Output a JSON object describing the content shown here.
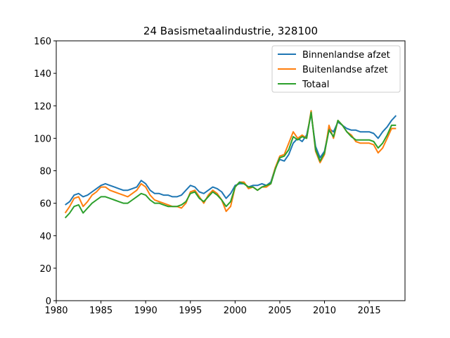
{
  "chart_data": {
    "type": "line",
    "title": "24 Basismetaalindustrie, 328100",
    "xlabel": "",
    "ylabel": "",
    "xlim": [
      1980,
      2019
    ],
    "ylim": [
      0,
      160
    ],
    "xticks": [
      1980,
      1985,
      1990,
      1995,
      2000,
      2005,
      2010,
      2015
    ],
    "yticks": [
      0,
      20,
      40,
      60,
      80,
      100,
      120,
      140,
      160
    ],
    "grid": false,
    "legend_position": "top-right",
    "series": [
      {
        "name": "Binnenlandse afzet",
        "color": "#1f77b4",
        "x": [
          1981.0,
          1981.5,
          1982.0,
          1982.5,
          1983.0,
          1983.5,
          1984.0,
          1984.5,
          1985.0,
          1985.5,
          1986.0,
          1986.5,
          1987.0,
          1987.5,
          1988.0,
          1988.5,
          1989.0,
          1989.5,
          1990.0,
          1990.5,
          1991.0,
          1991.5,
          1992.0,
          1992.5,
          1993.0,
          1993.5,
          1994.0,
          1994.5,
          1995.0,
          1995.5,
          1996.0,
          1996.5,
          1997.0,
          1997.5,
          1998.0,
          1998.5,
          1999.0,
          1999.5,
          2000.0,
          2000.5,
          2001.0,
          2001.5,
          2002.0,
          2002.5,
          2003.0,
          2003.5,
          2004.0,
          2004.5,
          2005.0,
          2005.5,
          2006.0,
          2006.5,
          2007.0,
          2007.5,
          2008.0,
          2008.5,
          2009.0,
          2009.5,
          2010.0,
          2010.5,
          2011.0,
          2011.5,
          2012.0,
          2012.5,
          2013.0,
          2013.5,
          2014.0,
          2014.5,
          2015.0,
          2015.5,
          2016.0,
          2016.5,
          2017.0,
          2017.5,
          2018.0
        ],
        "values": [
          59,
          61,
          65,
          66,
          64,
          65,
          67,
          69,
          71,
          72,
          71,
          70,
          69,
          68,
          68,
          69,
          70,
          74,
          72,
          68,
          66,
          66,
          65,
          65,
          64,
          64,
          65,
          68,
          71,
          70,
          67,
          66,
          68,
          70,
          69,
          67,
          63,
          66,
          71,
          72,
          72,
          70,
          71,
          71,
          72,
          71,
          73,
          82,
          87,
          86,
          90,
          97,
          100,
          98,
          102,
          115,
          95,
          88,
          92,
          106,
          104,
          110,
          108,
          106,
          105,
          105,
          104,
          104,
          104,
          103,
          100,
          104,
          107,
          111,
          114
        ]
      },
      {
        "name": "Buitenlandse afzet",
        "color": "#ff7f0e",
        "x": [
          1981.0,
          1981.5,
          1982.0,
          1982.5,
          1983.0,
          1983.5,
          1984.0,
          1984.5,
          1985.0,
          1985.5,
          1986.0,
          1986.5,
          1987.0,
          1987.5,
          1988.0,
          1988.5,
          1989.0,
          1989.5,
          1990.0,
          1990.5,
          1991.0,
          1991.5,
          1992.0,
          1992.5,
          1993.0,
          1993.5,
          1994.0,
          1994.5,
          1995.0,
          1995.5,
          1996.0,
          1996.5,
          1997.0,
          1997.5,
          1998.0,
          1998.5,
          1999.0,
          1999.5,
          2000.0,
          2000.5,
          2001.0,
          2001.5,
          2002.0,
          2002.5,
          2003.0,
          2003.5,
          2004.0,
          2004.5,
          2005.0,
          2005.5,
          2006.0,
          2006.5,
          2007.0,
          2007.5,
          2008.0,
          2008.5,
          2009.0,
          2009.5,
          2010.0,
          2010.5,
          2011.0,
          2011.5,
          2012.0,
          2012.5,
          2013.0,
          2013.5,
          2014.0,
          2014.5,
          2015.0,
          2015.5,
          2016.0,
          2016.5,
          2017.0,
          2017.5,
          2018.0
        ],
        "values": [
          54,
          58,
          63,
          64,
          58,
          61,
          65,
          67,
          70,
          70,
          68,
          67,
          66,
          65,
          64,
          66,
          68,
          72,
          70,
          65,
          62,
          61,
          60,
          59,
          58,
          58,
          57,
          60,
          67,
          68,
          64,
          60,
          65,
          68,
          66,
          62,
          55,
          58,
          70,
          73,
          73,
          69,
          70,
          68,
          70,
          70,
          72,
          82,
          89,
          90,
          97,
          104,
          100,
          102,
          100,
          117,
          92,
          85,
          90,
          108,
          100,
          111,
          108,
          104,
          102,
          98,
          97,
          97,
          97,
          96,
          91,
          94,
          100,
          106,
          106
        ]
      },
      {
        "name": "Totaal",
        "color": "#2ca02c",
        "x": [
          1981.0,
          1981.5,
          1982.0,
          1982.5,
          1983.0,
          1983.5,
          1984.0,
          1984.5,
          1985.0,
          1985.5,
          1986.0,
          1986.5,
          1987.0,
          1987.5,
          1988.0,
          1988.5,
          1989.0,
          1989.5,
          1990.0,
          1990.5,
          1991.0,
          1991.5,
          1992.0,
          1992.5,
          1993.0,
          1993.5,
          1994.0,
          1994.5,
          1995.0,
          1995.5,
          1996.0,
          1996.5,
          1997.0,
          1997.5,
          1998.0,
          1998.5,
          1999.0,
          1999.5,
          2000.0,
          2000.5,
          2001.0,
          2001.5,
          2002.0,
          2002.5,
          2003.0,
          2003.5,
          2004.0,
          2004.5,
          2005.0,
          2005.5,
          2006.0,
          2006.5,
          2007.0,
          2007.5,
          2008.0,
          2008.5,
          2009.0,
          2009.5,
          2010.0,
          2010.5,
          2011.0,
          2011.5,
          2012.0,
          2012.5,
          2013.0,
          2013.5,
          2014.0,
          2014.5,
          2015.0,
          2015.5,
          2016.0,
          2016.5,
          2017.0,
          2017.5,
          2018.0
        ],
        "values": [
          51,
          54,
          58,
          59,
          54,
          57,
          60,
          62,
          64,
          64,
          63,
          62,
          61,
          60,
          60,
          62,
          64,
          66,
          65,
          62,
          60,
          60,
          59,
          58,
          58,
          58,
          59,
          61,
          66,
          67,
          63,
          61,
          64,
          67,
          65,
          62,
          58,
          61,
          70,
          73,
          72,
          70,
          70,
          68,
          70,
          71,
          72,
          81,
          88,
          89,
          93,
          101,
          99,
          101,
          100,
          116,
          93,
          86,
          91,
          105,
          101,
          111,
          108,
          104,
          101,
          99,
          99,
          99,
          99,
          98,
          94,
          97,
          102,
          108,
          108
        ]
      }
    ]
  }
}
